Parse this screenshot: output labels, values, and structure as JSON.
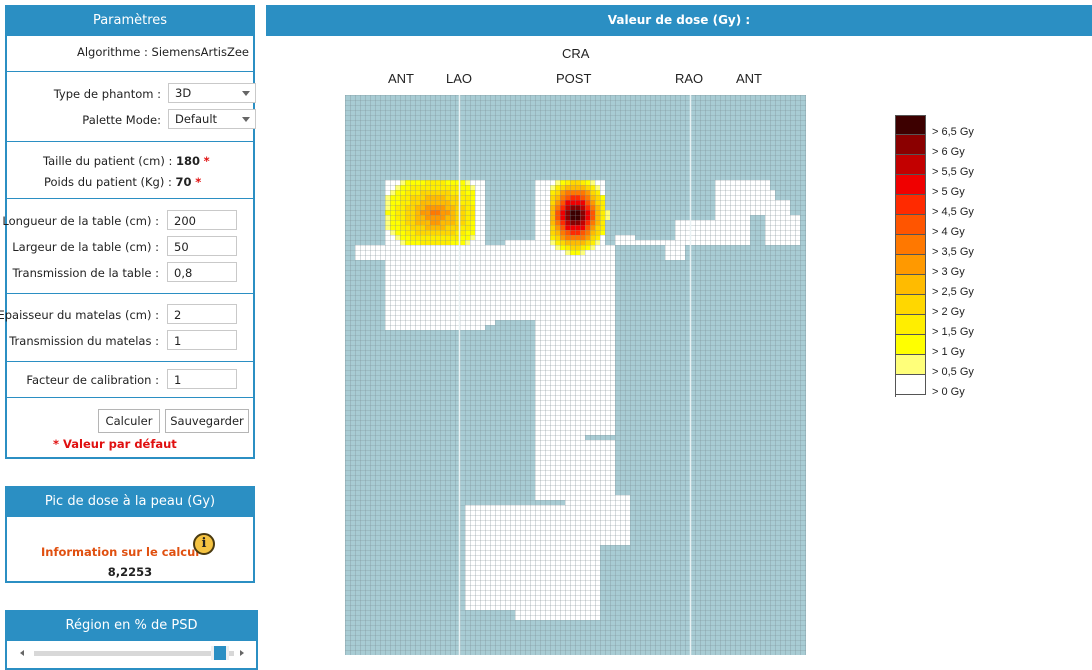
{
  "params": {
    "title": "Paramètres",
    "algorithm_label": "Algorithme :",
    "algorithm_value": "SiemensArtisZee",
    "phantom_label": "Type de phantom :",
    "phantom_value": "3D",
    "palette_label": "Palette Mode:",
    "palette_value": "Default",
    "height_label": "Taille du patient (cm) :",
    "height_value": "180",
    "weight_label": "Poids du patient (Kg) :",
    "weight_value": "70",
    "star": "*",
    "table_length_label": "Longueur de la table (cm) :",
    "table_length_value": "200",
    "table_width_label": "Largeur de la table (cm) :",
    "table_width_value": "50",
    "table_trans_label": "Transmission de la table :",
    "table_trans_value": "0,8",
    "mattress_thick_label": "Epaisseur du matelas (cm) :",
    "mattress_thick_value": "2",
    "mattress_trans_label": "Transmission du matelas :",
    "mattress_trans_value": "1",
    "calib_label": "Facteur de calibration :",
    "calib_value": "1",
    "calc_button": "Calculer",
    "save_button": "Sauvegarder",
    "default_note": "* Valeur par défaut"
  },
  "peak": {
    "title": "Pic de dose à la peau (Gy)",
    "info_label": "Information sur le calcul",
    "value": "8,2253"
  },
  "region": {
    "title": "Région en % de PSD",
    "slider_fraction": 0.97
  },
  "main": {
    "title": "Valeur de dose (Gy) :",
    "top_label": "CRA",
    "axis_labels": [
      "ANT",
      "LAO",
      "POST",
      "RAO",
      "ANT"
    ]
  },
  "legend": [
    {
      "label": "> 6,5 Gy",
      "color": "#3d0000"
    },
    {
      "label": "> 6 Gy",
      "color": "#8b0000"
    },
    {
      "label": "> 5,5 Gy",
      "color": "#c30000"
    },
    {
      "label": "> 5 Gy",
      "color": "#f00000"
    },
    {
      "label": "> 4,5 Gy",
      "color": "#ff2a00"
    },
    {
      "label": "> 4 Gy",
      "color": "#ff5500"
    },
    {
      "label": "> 3,5 Gy",
      "color": "#ff7800"
    },
    {
      "label": "> 3 Gy",
      "color": "#ff9900"
    },
    {
      "label": "> 2,5 Gy",
      "color": "#ffbb00"
    },
    {
      "label": "> 2 Gy",
      "color": "#ffd700"
    },
    {
      "label": "> 1,5 Gy",
      "color": "#ffee00"
    },
    {
      "label": "> 1 Gy",
      "color": "#ffff00"
    },
    {
      "label": "> 0,5 Gy",
      "color": "#ffff7a"
    },
    {
      "label": "> 0 Gy",
      "color": "#ffffff"
    }
  ],
  "colors": {
    "accent": "#2b8fc3",
    "grid_background": "#a8ccd4",
    "grid_body": "#ffffff",
    "required": "#e01010",
    "info_text": "#e05010"
  }
}
